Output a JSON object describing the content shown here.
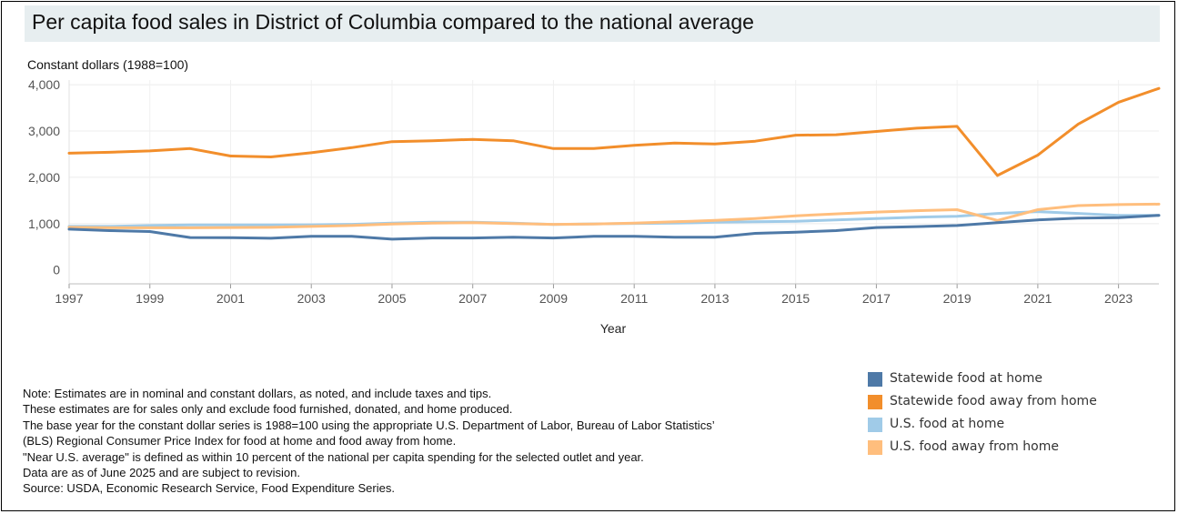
{
  "title": "Per capita food sales in District of Columbia compared to the national average",
  "unit_label": "Constant dollars (1988=100)",
  "notes": [
    "Note: Estimates are in nominal and constant dollars, as noted, and include taxes and tips.",
    "These estimates are for sales only and exclude food furnished, donated, and home produced.",
    "The base year for the constant dollar series is 1988=100 using the appropriate U.S. Department of Labor, Bureau of Labor Statistics’",
    "(BLS) Regional Consumer Price Index for food at home and food away from home.",
    "\"Near U.S. average\" is defined as within 10 percent of the national per capita spending for the selected outlet and year.",
    "Data are as of June 2025 and are subject to revision.",
    "Source: USDA, Economic Research Service, Food Expenditure Series."
  ],
  "chart_data": {
    "type": "line",
    "title": "Per capita food sales in District of Columbia compared to the national average",
    "xlabel": "Year",
    "ylabel": "Constant dollars (1988=100)",
    "xlim": [
      1997,
      2024
    ],
    "ylim": [
      -300,
      4100
    ],
    "x_ticks": [
      1997,
      1999,
      2001,
      2003,
      2005,
      2007,
      2009,
      2011,
      2013,
      2015,
      2017,
      2019,
      2021,
      2023
    ],
    "x_tick_labels": [
      "1997",
      "1999",
      "2001",
      "2003",
      "2005",
      "2007",
      "2009",
      "2011",
      "2013",
      "2015",
      "2017",
      "2019",
      "2021",
      "2023"
    ],
    "y_ticks": [
      0,
      1000,
      2000,
      3000,
      4000
    ],
    "y_tick_labels": [
      "0",
      "1,000",
      "2,000",
      "3,000",
      "4,000"
    ],
    "grid": true,
    "legend_position": "bottom-right",
    "x": [
      1997,
      1998,
      1999,
      2000,
      2001,
      2002,
      2003,
      2004,
      2005,
      2006,
      2007,
      2008,
      2009,
      2010,
      2011,
      2012,
      2013,
      2014,
      2015,
      2016,
      2017,
      2018,
      2019,
      2020,
      2021,
      2022,
      2023,
      2024
    ],
    "series": [
      {
        "name": "Statewide food at home",
        "color": "#4e79a7",
        "values": [
          880,
          850,
          830,
          700,
          695,
          685,
          725,
          725,
          665,
          690,
          690,
          705,
          690,
          725,
          725,
          705,
          705,
          790,
          815,
          850,
          915,
          935,
          960,
          1020,
          1080,
          1120,
          1130,
          1180
        ]
      },
      {
        "name": "Statewide food away from home",
        "color": "#f28e2b",
        "values": [
          2520,
          2540,
          2570,
          2620,
          2460,
          2440,
          2530,
          2640,
          2770,
          2790,
          2820,
          2790,
          2620,
          2620,
          2690,
          2740,
          2720,
          2780,
          2910,
          2920,
          2990,
          3060,
          3100,
          2040,
          2480,
          3150,
          3620,
          3920
        ]
      },
      {
        "name": "U.S. food at home",
        "color": "#a0cbe8",
        "values": [
          940,
          940,
          960,
          970,
          970,
          970,
          975,
          985,
          1010,
          1030,
          1030,
          1010,
          980,
          995,
          1005,
          1010,
          1030,
          1040,
          1050,
          1080,
          1110,
          1140,
          1160,
          1220,
          1260,
          1220,
          1180,
          1180
        ]
      },
      {
        "name": "U.S. food away from home",
        "color": "#ffbe7d",
        "values": [
          920,
          910,
          910,
          910,
          915,
          920,
          940,
          960,
          990,
          1010,
          1020,
          1000,
          985,
          990,
          1010,
          1040,
          1070,
          1110,
          1170,
          1210,
          1250,
          1280,
          1300,
          1070,
          1300,
          1390,
          1410,
          1420
        ]
      }
    ]
  }
}
